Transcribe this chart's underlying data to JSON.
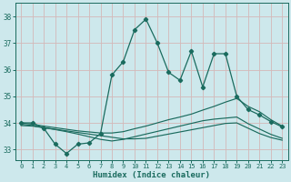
{
  "xlabel": "Humidex (Indice chaleur)",
  "bg_color": "#cde8ec",
  "grid_color": "#b0d4d8",
  "line_color": "#1a6b5e",
  "xlim": [
    -0.5,
    23.5
  ],
  "ylim": [
    32.6,
    38.5
  ],
  "yticks": [
    33,
    34,
    35,
    36,
    37,
    38
  ],
  "xticks": [
    0,
    1,
    2,
    3,
    4,
    5,
    6,
    7,
    8,
    9,
    10,
    11,
    12,
    13,
    14,
    15,
    16,
    17,
    18,
    19,
    20,
    21,
    22,
    23
  ],
  "main_line_x": [
    0,
    1,
    2,
    3,
    4,
    5,
    6,
    7,
    8,
    9,
    10,
    11,
    12,
    13,
    14,
    15,
    16,
    17,
    18,
    19,
    20,
    21,
    22,
    23
  ],
  "main_line_y": [
    34.0,
    34.0,
    33.8,
    33.2,
    32.85,
    33.2,
    33.25,
    33.6,
    35.8,
    36.3,
    37.5,
    37.9,
    37.0,
    35.9,
    35.6,
    36.7,
    35.35,
    36.6,
    36.6,
    35.0,
    34.5,
    34.3,
    34.05,
    33.85
  ],
  "line2_x": [
    0,
    1,
    2,
    3,
    4,
    5,
    6,
    7,
    8,
    9,
    10,
    11,
    12,
    13,
    14,
    15,
    16,
    17,
    18,
    19,
    20,
    21,
    22,
    23
  ],
  "line2_y": [
    34.0,
    33.95,
    33.88,
    33.82,
    33.76,
    33.7,
    33.66,
    33.62,
    33.62,
    33.67,
    33.78,
    33.88,
    34.0,
    34.12,
    34.22,
    34.33,
    34.48,
    34.62,
    34.78,
    34.92,
    34.62,
    34.42,
    34.12,
    33.88
  ],
  "line3_x": [
    0,
    1,
    2,
    3,
    4,
    5,
    6,
    7,
    8,
    9,
    10,
    11,
    12,
    13,
    14,
    15,
    16,
    17,
    18,
    19,
    20,
    21,
    22,
    23
  ],
  "line3_y": [
    33.95,
    33.9,
    33.82,
    33.75,
    33.67,
    33.58,
    33.48,
    33.38,
    33.32,
    33.38,
    33.48,
    33.58,
    33.68,
    33.78,
    33.88,
    33.98,
    34.08,
    34.14,
    34.18,
    34.22,
    33.97,
    33.77,
    33.57,
    33.42
  ],
  "line4_x": [
    0,
    1,
    2,
    3,
    4,
    5,
    6,
    7,
    8,
    9,
    10,
    11,
    12,
    13,
    14,
    15,
    16,
    17,
    18,
    19,
    20,
    21,
    22,
    23
  ],
  "line4_y": [
    33.9,
    33.88,
    33.82,
    33.76,
    33.7,
    33.64,
    33.58,
    33.52,
    33.46,
    33.4,
    33.4,
    33.42,
    33.5,
    33.58,
    33.66,
    33.74,
    33.82,
    33.9,
    33.98,
    34.0,
    33.8,
    33.6,
    33.45,
    33.35
  ]
}
